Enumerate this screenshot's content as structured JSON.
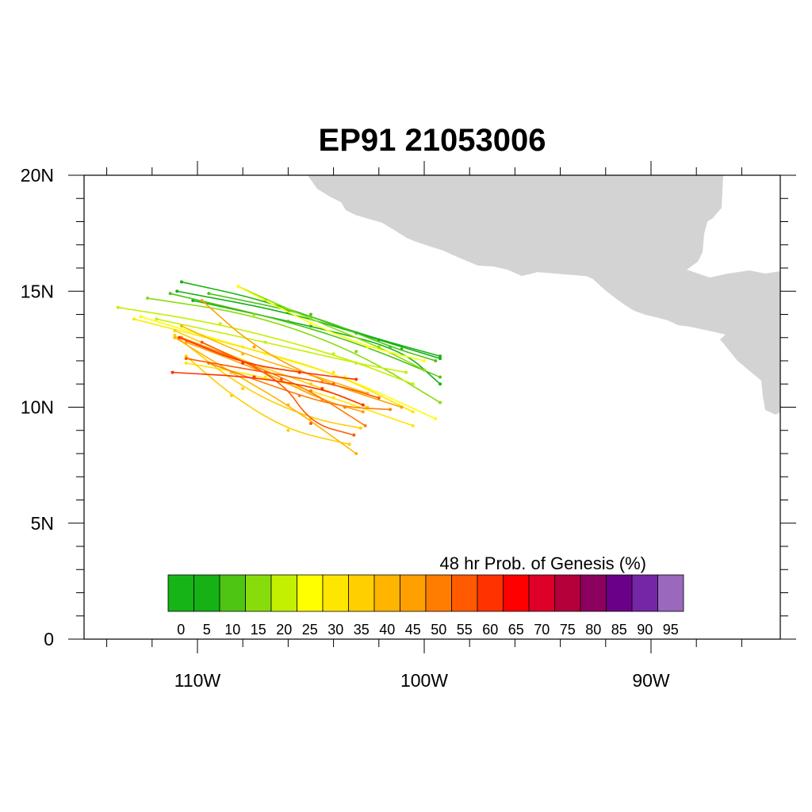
{
  "title": "EP91 21053006",
  "map": {
    "lon_range": [
      -115,
      -84.3
    ],
    "lat_range": [
      0,
      20
    ],
    "x_ticks": [
      {
        "lon": -110,
        "label": "110W"
      },
      {
        "lon": -100,
        "label": "100W"
      },
      {
        "lon": -90,
        "label": "90W"
      }
    ],
    "y_ticks": [
      {
        "lat": 0,
        "label": "0"
      },
      {
        "lat": 5,
        "label": "5N"
      },
      {
        "lat": 10,
        "label": "10N"
      },
      {
        "lat": 15,
        "label": "15N"
      },
      {
        "lat": 20,
        "label": "20N"
      }
    ],
    "land_color": "#d3d3d3"
  },
  "colorbar": {
    "title": "48 hr Prob. of Genesis (%)",
    "labels": [
      "0",
      "5",
      "10",
      "15",
      "20",
      "25",
      "30",
      "35",
      "40",
      "45",
      "50",
      "55",
      "60",
      "65",
      "70",
      "75",
      "80",
      "85",
      "90",
      "95"
    ],
    "colors": [
      "#17b417",
      "#15b115",
      "#4ec413",
      "#88dc0b",
      "#c3f000",
      "#ffff00",
      "#ffe600",
      "#ffcf00",
      "#ffb400",
      "#ffa000",
      "#ff7d00",
      "#ff5a00",
      "#ff3200",
      "#ff0000",
      "#de0028",
      "#b4003a",
      "#8c005f",
      "#6a0088",
      "#7526a6",
      "#9a68bc"
    ]
  },
  "chart_data": {
    "type": "map-tracks",
    "tracks": [
      {
        "color": "#17b417",
        "points": [
          [
            -110.7,
            15.4
          ],
          [
            -107,
            14.6
          ],
          [
            -103,
            13.2
          ],
          [
            -99.3,
            12.2
          ]
        ]
      },
      {
        "color": "#15b115",
        "points": [
          [
            -110.9,
            15.0
          ],
          [
            -106,
            14.1
          ],
          [
            -102,
            12.9
          ],
          [
            -99.3,
            12.1
          ]
        ]
      },
      {
        "color": "#15b115",
        "points": [
          [
            -110.2,
            14.6
          ],
          [
            -105,
            13.5
          ],
          [
            -101,
            12.5
          ],
          [
            -99.3,
            11.0
          ]
        ]
      },
      {
        "color": "#4ec413",
        "points": [
          [
            -109.5,
            14.9
          ],
          [
            -105,
            14.0
          ],
          [
            -101.5,
            12.6
          ],
          [
            -99.5,
            12.0
          ]
        ]
      },
      {
        "color": "#4ec413",
        "points": [
          [
            -111.2,
            14.9
          ],
          [
            -106,
            13.7
          ],
          [
            -102.5,
            12.6
          ],
          [
            -99.3,
            11.3
          ]
        ]
      },
      {
        "color": "#88dc0b",
        "points": [
          [
            -112.2,
            14.7
          ],
          [
            -107.5,
            14.0
          ],
          [
            -103,
            12.4
          ],
          [
            -99.3,
            10.2
          ]
        ]
      },
      {
        "color": "#88dc0b",
        "points": [
          [
            -108.2,
            15.2
          ],
          [
            -105,
            13.8
          ],
          [
            -102,
            12.6
          ],
          [
            -100,
            11.6
          ]
        ]
      },
      {
        "color": "#c3f000",
        "points": [
          [
            -113.5,
            14.3
          ],
          [
            -109,
            13.6
          ],
          [
            -104,
            12.3
          ],
          [
            -100.5,
            11.0
          ]
        ]
      },
      {
        "color": "#c3f000",
        "points": [
          [
            -111.8,
            13.8
          ],
          [
            -107,
            12.8
          ],
          [
            -103,
            11.9
          ],
          [
            -100.8,
            11.5
          ]
        ]
      },
      {
        "color": "#ffff00",
        "points": [
          [
            -108.2,
            15.2
          ],
          [
            -105,
            13.6
          ],
          [
            -102.5,
            12.6
          ],
          [
            -100,
            12.0
          ]
        ]
      },
      {
        "color": "#ffff00",
        "points": [
          [
            -112.5,
            13.9
          ],
          [
            -107,
            12.3
          ],
          [
            -103.5,
            11.3
          ],
          [
            -99.5,
            9.5
          ]
        ]
      },
      {
        "color": "#ffe600",
        "points": [
          [
            -112.8,
            13.8
          ],
          [
            -108,
            12.6
          ],
          [
            -104,
            11.5
          ],
          [
            -100.5,
            9.8
          ]
        ]
      },
      {
        "color": "#ffe600",
        "points": [
          [
            -110.5,
            11.9
          ],
          [
            -107,
            11.3
          ],
          [
            -104,
            10.4
          ],
          [
            -100.5,
            9.2
          ]
        ]
      },
      {
        "color": "#ffcf00",
        "points": [
          [
            -111,
            13.3
          ],
          [
            -108,
            12.0
          ],
          [
            -105,
            11.0
          ],
          [
            -102.5,
            10.0
          ]
        ]
      },
      {
        "color": "#ffcf00",
        "points": [
          [
            -110.5,
            12.2
          ],
          [
            -108.5,
            10.5
          ],
          [
            -106,
            9.0
          ],
          [
            -103.3,
            8.4
          ]
        ]
      },
      {
        "color": "#ffcf00",
        "points": [
          [
            -111,
            13.1
          ],
          [
            -108,
            10.8
          ],
          [
            -105,
            9.5
          ],
          [
            -102.8,
            9.1
          ]
        ]
      },
      {
        "color": "#ffb400",
        "points": [
          [
            -111,
            13.0
          ],
          [
            -108.5,
            11.5
          ],
          [
            -106,
            10.1
          ],
          [
            -103.0,
            8.0
          ]
        ]
      },
      {
        "color": "#ffb400",
        "points": [
          [
            -110.7,
            13.5
          ],
          [
            -108,
            12.3
          ],
          [
            -105,
            11.4
          ],
          [
            -102.5,
            10.6
          ]
        ]
      },
      {
        "color": "#ffa000",
        "points": [
          [
            -110.5,
            12.8
          ],
          [
            -107,
            11.5
          ],
          [
            -104.5,
            10.3
          ],
          [
            -102.7,
            9.8
          ]
        ]
      },
      {
        "color": "#ffa000",
        "points": [
          [
            -109.8,
            14.6
          ],
          [
            -107.5,
            12.6
          ],
          [
            -104.5,
            11.1
          ],
          [
            -101,
            10.0
          ]
        ]
      },
      {
        "color": "#ff7d00",
        "points": [
          [
            -109.5,
            11.9
          ],
          [
            -105.5,
            10.5
          ],
          [
            -103.5,
            10.0
          ],
          [
            -101.5,
            9.9
          ]
        ]
      },
      {
        "color": "#ff7d00",
        "points": [
          [
            -110.7,
            13.0
          ],
          [
            -107.5,
            11.8
          ],
          [
            -105,
            10.7
          ],
          [
            -102.6,
            9.2
          ]
        ]
      },
      {
        "color": "#ff5a00",
        "points": [
          [
            -110.5,
            12.1
          ],
          [
            -107,
            11.5
          ],
          [
            -104,
            11.0
          ],
          [
            -102,
            10.4
          ]
        ]
      },
      {
        "color": "#ff5a00",
        "points": [
          [
            -109.8,
            12.8
          ],
          [
            -106.3,
            11.2
          ],
          [
            -105,
            9.3
          ],
          [
            -103.1,
            8.8
          ]
        ]
      },
      {
        "color": "#ff3200",
        "points": [
          [
            -111.1,
            11.5
          ],
          [
            -107.5,
            11.3
          ],
          [
            -104.5,
            10.8
          ],
          [
            -102.7,
            10.1
          ]
        ]
      },
      {
        "color": "#ff3200",
        "points": [
          [
            -110.8,
            13.0
          ],
          [
            -108,
            11.9
          ],
          [
            -105.5,
            11.5
          ],
          [
            -103,
            11.2
          ]
        ]
      }
    ]
  }
}
